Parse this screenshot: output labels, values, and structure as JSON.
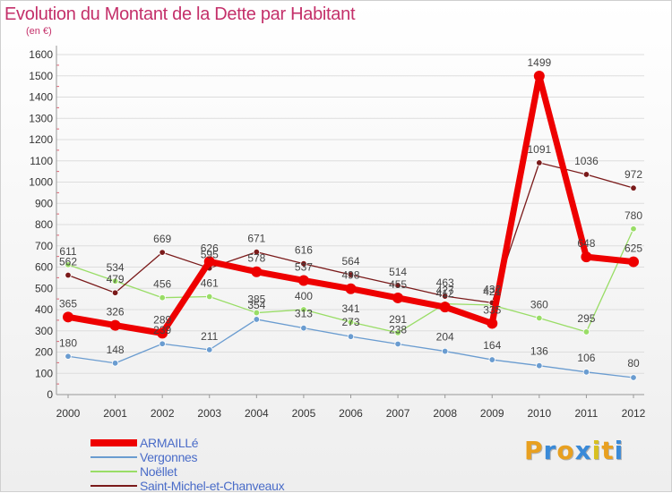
{
  "title": "Evolution du Montant de la Dette par Habitant",
  "unit": "(en €)",
  "brand": "Proxiti",
  "brand_colors": [
    "#e8a020",
    "#3a8ad8",
    "#e8a020",
    "#3a8ad8",
    "#d8c020",
    "#e8a020",
    "#3a8ad8"
  ],
  "chart_data": {
    "type": "line",
    "x": [
      "2000",
      "2001",
      "2002",
      "2003",
      "2004",
      "2005",
      "2006",
      "2007",
      "2008",
      "2009",
      "2010",
      "2011",
      "2012"
    ],
    "ylim": [
      0,
      1600
    ],
    "yticks": [
      0,
      100,
      200,
      300,
      400,
      500,
      600,
      700,
      800,
      900,
      1000,
      1100,
      1200,
      1300,
      1400,
      1500,
      1600
    ],
    "grid": "horizontal",
    "legend_position": "bottom-left",
    "series": [
      {
        "name": "ARMAILLé",
        "color": "#ee0000",
        "values": [
          365,
          326,
          289,
          626,
          578,
          537,
          498,
          455,
          412,
          335,
          1499,
          648,
          625
        ]
      },
      {
        "name": "Vergonnes",
        "color": "#6a9cd0",
        "values": [
          180,
          148,
          239,
          211,
          354,
          313,
          273,
          238,
          204,
          164,
          136,
          106,
          80
        ]
      },
      {
        "name": "Noëllet",
        "color": "#99dd66",
        "values": [
          611,
          534,
          456,
          461,
          385,
          400,
          341,
          291,
          427,
          421,
          360,
          295,
          780
        ]
      },
      {
        "name": "Saint-Michel-et-Chanveaux",
        "color": "#7a1a1a",
        "values": [
          562,
          479,
          669,
          595,
          671,
          616,
          564,
          514,
          463,
          432,
          1091,
          1036,
          972
        ]
      }
    ]
  }
}
